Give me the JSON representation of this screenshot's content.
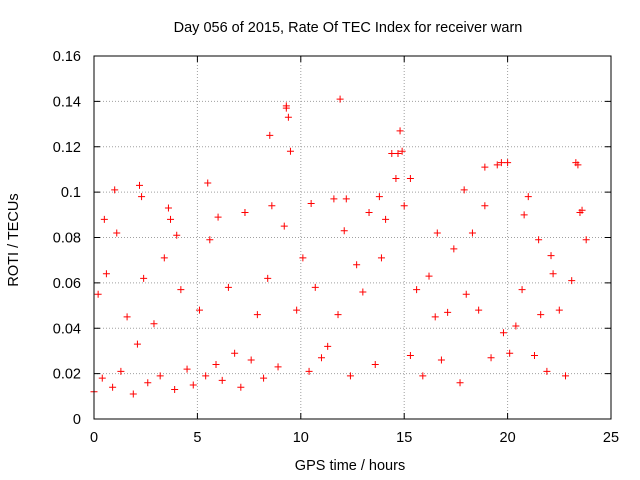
{
  "chart_data": {
    "type": "scatter",
    "title": "Day 056 of 2015, Rate Of TEC Index for receiver warn",
    "xlabel": "GPS time / hours",
    "ylabel": "ROTI / TECUs",
    "xlim": [
      0,
      25
    ],
    "ylim": [
      0,
      0.16
    ],
    "xticks": [
      0,
      5,
      10,
      15,
      20,
      25
    ],
    "xtick_labels": [
      "0",
      "5",
      "10",
      "15",
      "20",
      "25"
    ],
    "yticks": [
      0,
      0.02,
      0.04,
      0.06,
      0.08,
      0.1,
      0.12,
      0.14,
      0.16
    ],
    "ytick_labels": [
      "0",
      "0.02",
      "0.04",
      "0.06",
      "0.08",
      "0.1",
      "0.12",
      "0.14",
      "0.16"
    ],
    "grid": true,
    "marker": "+",
    "marker_color": "#ff0000",
    "series": [
      {
        "name": "ROTI",
        "x": [
          0.0,
          0.2,
          0.4,
          0.6,
          0.9,
          1.1,
          1.3,
          1.6,
          1.9,
          2.1,
          2.3,
          2.4,
          2.6,
          2.9,
          3.2,
          3.4,
          3.7,
          3.9,
          4.2,
          4.5,
          4.8,
          5.1,
          5.4,
          5.6,
          5.9,
          6.2,
          6.5,
          6.8,
          7.1,
          7.3,
          7.6,
          7.9,
          8.2,
          8.4,
          8.6,
          8.9,
          9.2,
          9.3,
          9.5,
          9.8,
          10.1,
          10.4,
          10.7,
          11.0,
          11.3,
          11.6,
          11.8,
          12.1,
          12.4,
          12.7,
          13.0,
          13.3,
          13.6,
          13.9,
          14.1,
          14.4,
          14.6,
          14.8,
          15.0,
          15.3,
          15.6,
          15.9,
          16.2,
          16.5,
          16.8,
          17.1,
          17.4,
          17.7,
          18.0,
          18.3,
          18.6,
          18.9,
          19.2,
          19.5,
          19.8,
          20.1,
          20.4,
          20.7,
          21.0,
          21.3,
          21.6,
          21.9,
          22.2,
          22.5,
          22.8,
          23.1,
          23.4,
          23.6,
          23.8,
          0.5,
          1.0,
          2.2,
          3.6,
          5.5,
          7.3,
          8.5,
          9.3,
          9.4,
          11.9,
          12.2,
          13.8,
          14.7,
          14.9,
          15.3,
          18.9,
          19.7,
          20.0,
          20.8,
          22.1,
          23.3,
          23.5,
          4.0,
          6.0,
          10.5,
          16.6,
          17.9,
          21.5
        ],
        "y": [
          0.012,
          0.055,
          0.018,
          0.064,
          0.014,
          0.082,
          0.021,
          0.045,
          0.011,
          0.033,
          0.098,
          0.062,
          0.016,
          0.042,
          0.019,
          0.071,
          0.088,
          0.013,
          0.057,
          0.022,
          0.015,
          0.048,
          0.019,
          0.079,
          0.024,
          0.017,
          0.058,
          0.029,
          0.014,
          0.091,
          0.026,
          0.046,
          0.018,
          0.062,
          0.094,
          0.023,
          0.085,
          0.138,
          0.118,
          0.048,
          0.071,
          0.021,
          0.058,
          0.027,
          0.032,
          0.097,
          0.046,
          0.083,
          0.019,
          0.068,
          0.056,
          0.091,
          0.024,
          0.071,
          0.088,
          0.117,
          0.106,
          0.127,
          0.094,
          0.028,
          0.057,
          0.019,
          0.063,
          0.045,
          0.026,
          0.047,
          0.075,
          0.016,
          0.055,
          0.082,
          0.048,
          0.094,
          0.027,
          0.112,
          0.038,
          0.029,
          0.041,
          0.057,
          0.098,
          0.028,
          0.046,
          0.021,
          0.064,
          0.048,
          0.019,
          0.061,
          0.112,
          0.092,
          0.079,
          0.088,
          0.101,
          0.103,
          0.093,
          0.104,
          0.091,
          0.125,
          0.137,
          0.133,
          0.141,
          0.097,
          0.098,
          0.117,
          0.118,
          0.106,
          0.111,
          0.113,
          0.113,
          0.09,
          0.072,
          0.113,
          0.091,
          0.081,
          0.089,
          0.095,
          0.082,
          0.101,
          0.079
        ]
      }
    ]
  }
}
